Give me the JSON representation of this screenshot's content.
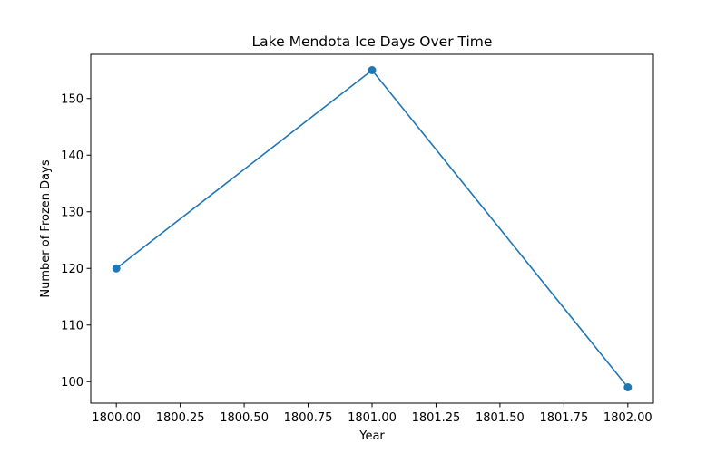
{
  "chart_data": {
    "type": "line",
    "title": "Lake Mendota Ice Days Over Time",
    "xlabel": "Year",
    "ylabel": "Number of Frozen Days",
    "x": [
      1800,
      1801,
      1802
    ],
    "series": [
      {
        "values": [
          120,
          155,
          99
        ],
        "color": "#1f77b4",
        "marker": "circle"
      }
    ],
    "xlim": [
      1799.9,
      1802.1
    ],
    "ylim": [
      96.2,
      157.8
    ],
    "xticks": [
      1800.0,
      1800.25,
      1800.5,
      1800.75,
      1801.0,
      1801.25,
      1801.5,
      1801.75,
      1802.0
    ],
    "xtick_labels": [
      "1800.00",
      "1800.25",
      "1800.50",
      "1800.75",
      "1801.00",
      "1801.25",
      "1801.50",
      "1801.75",
      "1802.00"
    ],
    "yticks": [
      100,
      110,
      120,
      130,
      140,
      150
    ],
    "ytick_labels": [
      "100",
      "110",
      "120",
      "130",
      "140",
      "150"
    ],
    "grid": false,
    "legend": "none"
  }
}
